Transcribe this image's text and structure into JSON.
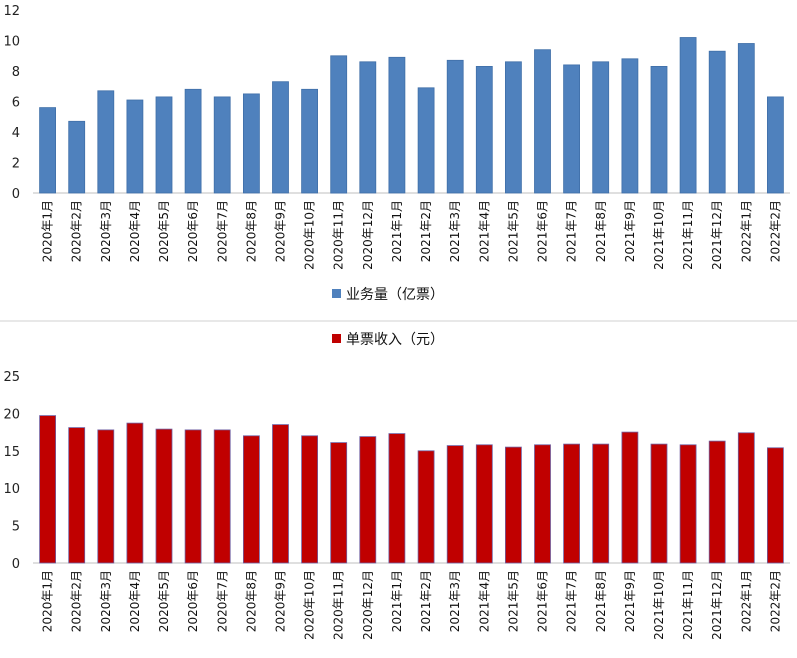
{
  "chart_data": [
    {
      "type": "bar",
      "legend": "业务量（亿票）",
      "legend_position": "bottom",
      "color": "#4f81bd",
      "stroke": "#3f6fa8",
      "ylim": [
        0,
        12
      ],
      "yticks": [
        "0",
        "2",
        "4",
        "6",
        "8",
        "10",
        "12"
      ],
      "grid": false,
      "categories": [
        "2020年1月",
        "2020年2月",
        "2020年3月",
        "2020年4月",
        "2020年5月",
        "2020年6月",
        "2020年7月",
        "2020年8月",
        "2020年9月",
        "2020年10月",
        "2020年11月",
        "2020年12月",
        "2021年1月",
        "2021年2月",
        "2021年3月",
        "2021年4月",
        "2021年5月",
        "2021年6月",
        "2021年7月",
        "2021年8月",
        "2021年9月",
        "2021年10月",
        "2021年11月",
        "2021年12月",
        "2022年1月",
        "2022年2月"
      ],
      "series": [
        {
          "name": "业务量（亿票）",
          "values": [
            5.6,
            4.7,
            6.7,
            6.1,
            6.3,
            6.8,
            6.3,
            6.5,
            7.3,
            6.8,
            9.0,
            8.6,
            8.9,
            6.9,
            8.7,
            8.3,
            8.6,
            9.4,
            8.4,
            8.6,
            8.8,
            8.3,
            10.2,
            9.3,
            9.8,
            6.3
          ]
        }
      ]
    },
    {
      "type": "bar",
      "legend": "单票收入（元）",
      "legend_position": "top",
      "color": "#c00000",
      "stroke": "#6f5fa0",
      "ylim": [
        0,
        25
      ],
      "yticks": [
        "0",
        "5",
        "10",
        "15",
        "20",
        "25"
      ],
      "grid": false,
      "categories": [
        "2020年1月",
        "2020年2月",
        "2020年3月",
        "2020年4月",
        "2020年5月",
        "2020年6月",
        "2020年7月",
        "2020年8月",
        "2020年9月",
        "2020年10月",
        "2020年11月",
        "2020年12月",
        "2021年1月",
        "2021年2月",
        "2021年3月",
        "2021年4月",
        "2021年5月",
        "2021年6月",
        "2021年7月",
        "2021年8月",
        "2021年9月",
        "2021年10月",
        "2021年11月",
        "2021年12月",
        "2022年1月",
        "2022年2月"
      ],
      "series": [
        {
          "name": "单票收入（元）",
          "values": [
            19.7,
            18.1,
            17.8,
            18.7,
            17.9,
            17.8,
            17.8,
            17.0,
            18.5,
            17.0,
            16.1,
            16.9,
            17.3,
            15.0,
            15.7,
            15.8,
            15.5,
            15.8,
            15.9,
            15.9,
            17.5,
            15.9,
            15.8,
            16.3,
            17.4,
            15.4
          ]
        }
      ]
    }
  ]
}
